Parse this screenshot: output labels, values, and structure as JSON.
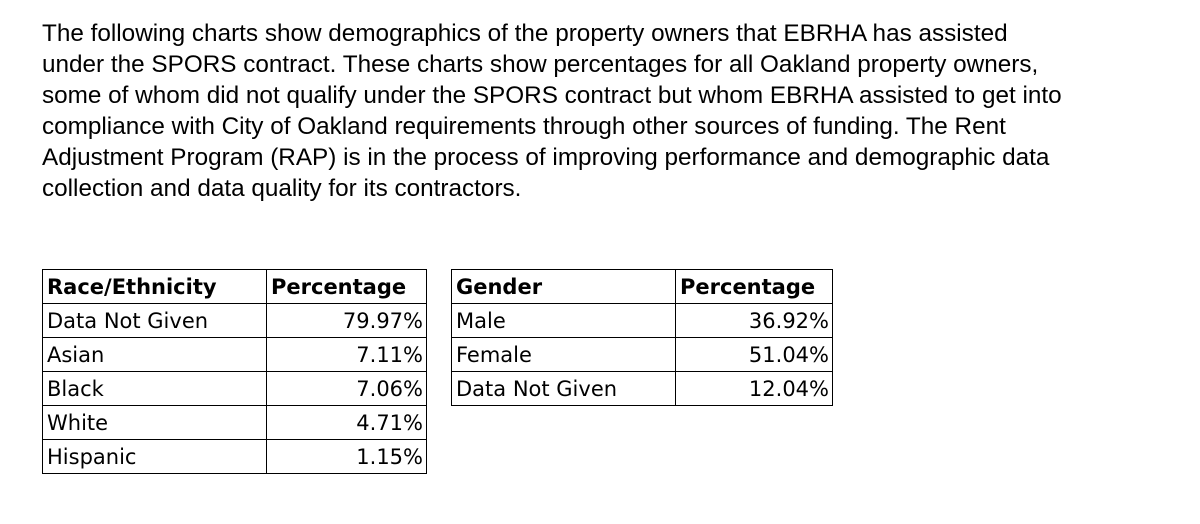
{
  "intro_lines": [
    "The following charts show demographics of the property owners that EBRHA has assisted",
    "under the SPORS contract. These charts show percentages for all Oakland property owners,",
    "some of whom did not qualify under the SPORS contract but whom EBRHA assisted to get into",
    "compliance with City of Oakland requirements through other sources of funding. The Rent",
    "Adjustment Program (RAP) is in the process of improving performance and demographic data",
    "collection and data quality for its contractors."
  ],
  "race_table": {
    "headers": [
      "Race/Ethnicity",
      "Percentage"
    ],
    "rows": [
      {
        "label": "Data Not Given",
        "value": "79.97%"
      },
      {
        "label": "Asian",
        "value": "7.11%"
      },
      {
        "label": "Black",
        "value": "7.06%"
      },
      {
        "label": "White",
        "value": "4.71%"
      },
      {
        "label": "Hispanic",
        "value": "1.15%"
      }
    ]
  },
  "gender_table": {
    "headers": [
      "Gender",
      "Percentage"
    ],
    "rows": [
      {
        "label": "Male",
        "value": "36.92%"
      },
      {
        "label": "Female",
        "value": "51.04%"
      },
      {
        "label": "Data Not Given",
        "value": "12.04%"
      }
    ]
  }
}
